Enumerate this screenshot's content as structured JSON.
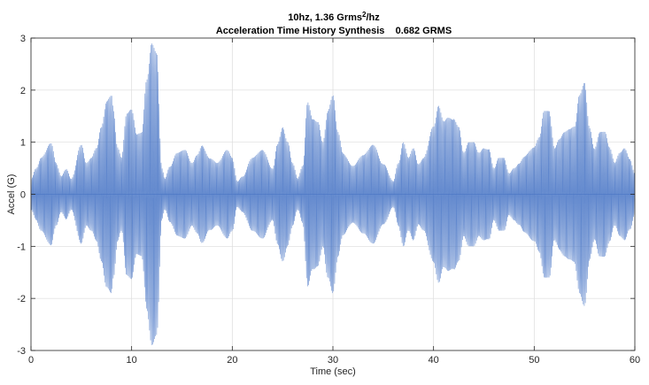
{
  "chart_data": {
    "type": "line",
    "title_line1_prefix": "10hz, 1.36 Grms",
    "title_line1_sup": "2",
    "title_line1_suffix": "/hz",
    "title_line2": "Acceleration Time History Synthesis    0.682 GRMS",
    "xlabel": "Time (sec)",
    "ylabel": "Accel (G)",
    "xlim": [
      0,
      60
    ],
    "ylim": [
      -3,
      3
    ],
    "xticks": [
      0,
      10,
      20,
      30,
      40,
      50,
      60
    ],
    "yticks": [
      -3,
      -2,
      -1,
      0,
      1,
      2,
      3
    ],
    "xtick_labels": [
      "0",
      "10",
      "20",
      "30",
      "40",
      "50",
      "60"
    ],
    "ytick_labels": [
      "-3",
      "-2",
      "-1",
      "0",
      "1",
      "2",
      "3"
    ],
    "grid": true,
    "carrier_frequency_hz": 10,
    "series": [
      {
        "name": "Acceleration",
        "color": "#4472c4",
        "envelope_times": [
          0,
          0.5,
          1,
          2,
          2.5,
          3,
          3.5,
          4,
          5,
          5.5,
          6,
          6.5,
          7,
          7.5,
          8,
          8.2,
          8.6,
          9,
          9.5,
          10,
          10.5,
          11,
          11.5,
          12,
          12.5,
          13,
          13.3,
          13.8,
          14.5,
          15.3,
          16,
          16.5,
          17,
          17.8,
          18.5,
          19.5,
          20,
          20.5,
          21,
          22,
          23,
          24,
          24.5,
          25,
          25.5,
          26,
          26.5,
          27,
          27.5,
          28,
          28.5,
          29,
          29.5,
          30,
          30.5,
          31,
          32,
          33,
          34,
          35,
          36,
          36.5,
          37,
          37.5,
          38,
          38.5,
          39,
          40,
          40.5,
          41,
          41.5,
          42,
          42.5,
          43,
          43.5,
          44,
          44.5,
          45,
          45.5,
          46,
          46.5,
          47,
          47.5,
          48,
          48.5,
          49,
          50,
          50.5,
          51,
          51.5,
          52,
          52.5,
          53,
          53.5,
          54,
          54.5,
          55,
          55.5,
          56,
          56.5,
          57,
          57.5,
          58,
          58.5,
          59,
          59.5,
          60
        ],
        "envelope_amplitudes": [
          0.3,
          0.5,
          0.7,
          0.98,
          0.6,
          0.35,
          0.5,
          0.3,
          0.95,
          0.6,
          0.7,
          0.9,
          1.35,
          1.8,
          1.9,
          1.6,
          0.9,
          0.7,
          1.55,
          1.65,
          1.2,
          1.2,
          2.2,
          2.9,
          2.7,
          0.5,
          0.3,
          0.55,
          0.8,
          0.85,
          0.6,
          0.75,
          0.95,
          0.7,
          0.6,
          0.85,
          0.7,
          0.25,
          0.35,
          0.7,
          0.85,
          0.5,
          1.0,
          1.3,
          1.0,
          0.6,
          0.3,
          0.55,
          1.8,
          1.5,
          1.4,
          1.0,
          1.6,
          1.9,
          1.2,
          0.8,
          0.55,
          0.75,
          0.95,
          0.6,
          0.25,
          0.6,
          1.0,
          0.7,
          0.9,
          0.6,
          0.7,
          1.3,
          1.7,
          1.4,
          1.5,
          1.5,
          1.3,
          0.8,
          1.0,
          1.0,
          0.8,
          0.9,
          0.9,
          0.5,
          0.7,
          0.7,
          0.4,
          0.5,
          0.6,
          0.75,
          0.9,
          1.1,
          1.6,
          1.6,
          0.9,
          1.1,
          1.2,
          1.25,
          1.3,
          1.9,
          2.15,
          1.3,
          0.9,
          1.2,
          1.2,
          0.9,
          0.6,
          0.8,
          0.9,
          0.7,
          0.4
        ]
      }
    ]
  }
}
